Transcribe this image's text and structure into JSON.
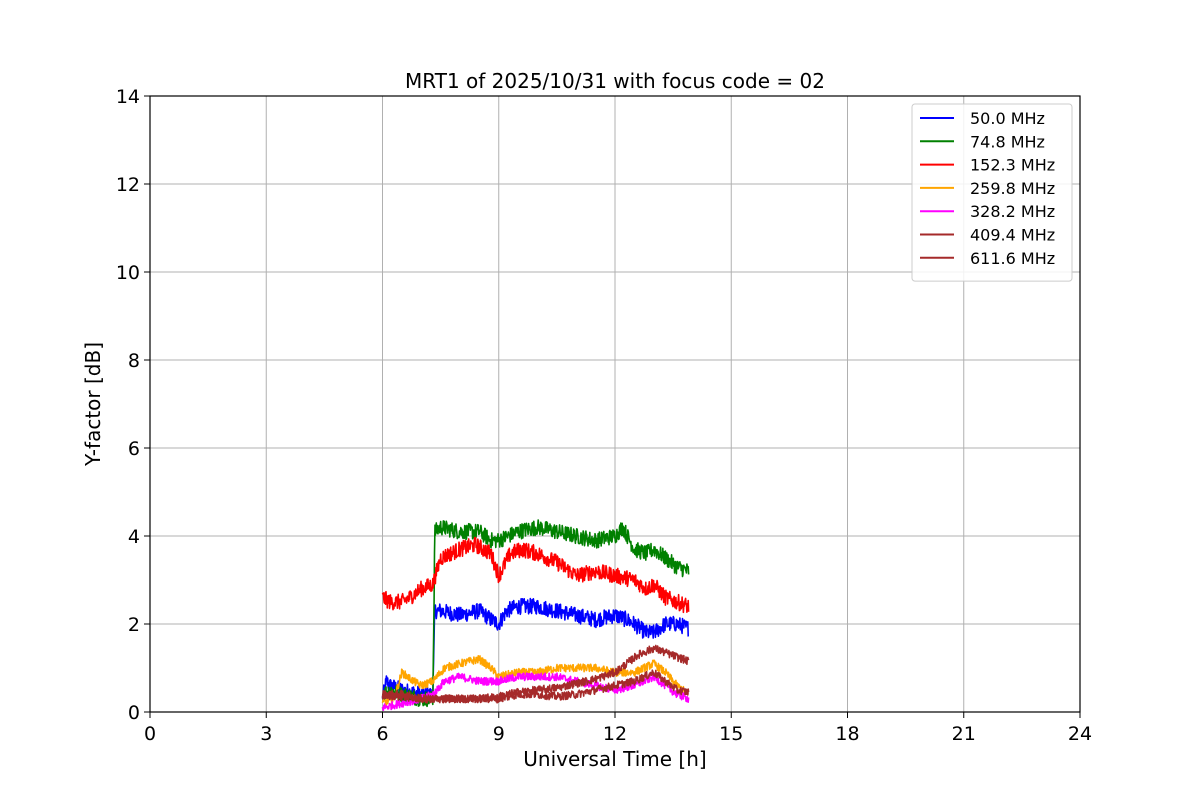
{
  "chart_data": {
    "type": "line",
    "title": "MRT1 of 2025/10/31 with focus code = 02",
    "xlabel": "Universal Time [h]",
    "ylabel": "Y-factor [dB]",
    "xlim": [
      0,
      24
    ],
    "ylim": [
      0,
      14
    ],
    "xticks": [
      0,
      3,
      6,
      9,
      12,
      15,
      18,
      21,
      24
    ],
    "yticks": [
      0,
      2,
      4,
      6,
      8,
      10,
      12,
      14
    ],
    "grid": true,
    "legend_position": "top-right",
    "series": [
      {
        "name": " 50.0 MHz",
        "color": "#0000ff",
        "x": [
          6.0,
          6.1,
          6.2,
          6.5,
          7.0,
          7.3,
          7.35,
          7.5,
          8.0,
          8.5,
          8.8,
          9.0,
          9.2,
          9.5,
          10.0,
          10.5,
          11.0,
          11.5,
          12.0,
          12.3,
          12.5,
          12.8,
          13.0,
          13.3,
          13.6,
          13.9
        ],
        "y": [
          0.3,
          0.7,
          0.6,
          0.5,
          0.4,
          0.4,
          2.3,
          2.3,
          2.2,
          2.3,
          2.1,
          2.0,
          2.3,
          2.4,
          2.4,
          2.3,
          2.2,
          2.1,
          2.2,
          2.1,
          2.0,
          1.8,
          1.8,
          2.0,
          2.0,
          1.9
        ]
      },
      {
        "name": " 74.8 MHz",
        "color": "#008000",
        "x": [
          6.0,
          6.2,
          6.5,
          7.0,
          7.3,
          7.35,
          7.5,
          8.0,
          8.5,
          8.8,
          9.0,
          9.5,
          10.0,
          10.5,
          11.0,
          11.5,
          12.0,
          12.2,
          12.5,
          12.8,
          13.0,
          13.3,
          13.6,
          13.9
        ],
        "y": [
          0.4,
          0.5,
          0.4,
          0.3,
          0.3,
          4.1,
          4.2,
          4.1,
          4.1,
          3.9,
          3.9,
          4.1,
          4.2,
          4.1,
          4.0,
          3.9,
          4.0,
          4.2,
          3.7,
          3.6,
          3.7,
          3.5,
          3.3,
          3.2
        ]
      },
      {
        "name": " 152.3 MHz",
        "color": "#ff0000",
        "x": [
          6.0,
          6.2,
          6.5,
          6.7,
          7.0,
          7.3,
          7.5,
          8.0,
          8.4,
          8.8,
          9.0,
          9.3,
          9.6,
          10.0,
          10.5,
          11.0,
          11.5,
          12.0,
          12.5,
          12.8,
          13.0,
          13.3,
          13.6,
          13.9
        ],
        "y": [
          2.6,
          2.5,
          2.5,
          2.6,
          2.8,
          2.9,
          3.5,
          3.7,
          3.8,
          3.6,
          3.1,
          3.6,
          3.7,
          3.6,
          3.4,
          3.1,
          3.2,
          3.1,
          3.0,
          2.8,
          2.9,
          2.6,
          2.5,
          2.4
        ]
      },
      {
        "name": " 259.8 MHz",
        "color": "#ffa500",
        "x": [
          6.0,
          6.3,
          6.5,
          6.8,
          7.0,
          7.3,
          7.6,
          8.0,
          8.5,
          8.8,
          9.0,
          9.5,
          10.0,
          10.5,
          11.0,
          11.5,
          12.0,
          12.5,
          13.0,
          13.3,
          13.6,
          13.9
        ],
        "y": [
          0.2,
          0.3,
          0.9,
          0.7,
          0.6,
          0.7,
          1.0,
          1.1,
          1.2,
          1.0,
          0.8,
          0.9,
          0.9,
          1.0,
          1.0,
          1.0,
          0.9,
          0.9,
          1.1,
          0.9,
          0.6,
          0.4
        ]
      },
      {
        "name": " 328.2 MHz",
        "color": "#ff00ff",
        "x": [
          6.0,
          6.5,
          7.0,
          7.3,
          7.6,
          8.0,
          8.5,
          8.8,
          9.0,
          9.5,
          10.0,
          10.5,
          11.0,
          11.5,
          12.0,
          12.5,
          13.0,
          13.3,
          13.6,
          13.9
        ],
        "y": [
          0.1,
          0.2,
          0.3,
          0.4,
          0.7,
          0.8,
          0.7,
          0.7,
          0.7,
          0.8,
          0.8,
          0.8,
          0.7,
          0.6,
          0.5,
          0.6,
          0.8,
          0.6,
          0.4,
          0.3
        ]
      },
      {
        "name": " 409.4 MHz",
        "color": "#a52a2a",
        "x": [
          6.0,
          6.5,
          7.0,
          7.5,
          8.0,
          8.5,
          9.0,
          9.5,
          10.0,
          10.5,
          11.0,
          11.5,
          12.0,
          12.5,
          13.0,
          13.3,
          13.6,
          13.9
        ],
        "y": [
          0.35,
          0.35,
          0.3,
          0.3,
          0.3,
          0.3,
          0.3,
          0.4,
          0.4,
          0.35,
          0.4,
          0.5,
          0.6,
          0.7,
          0.9,
          0.7,
          0.5,
          0.45
        ]
      },
      {
        "name": " 611.6 MHz",
        "color": "#a52a2a",
        "x": [
          6.0,
          6.5,
          7.0,
          7.5,
          8.0,
          8.5,
          9.0,
          9.5,
          10.0,
          10.5,
          11.0,
          11.5,
          12.0,
          12.3,
          12.6,
          13.0,
          13.3,
          13.6,
          13.9
        ],
        "y": [
          0.4,
          0.4,
          0.3,
          0.3,
          0.3,
          0.3,
          0.35,
          0.45,
          0.5,
          0.55,
          0.65,
          0.75,
          0.9,
          1.1,
          1.3,
          1.45,
          1.35,
          1.25,
          1.15
        ]
      }
    ]
  }
}
